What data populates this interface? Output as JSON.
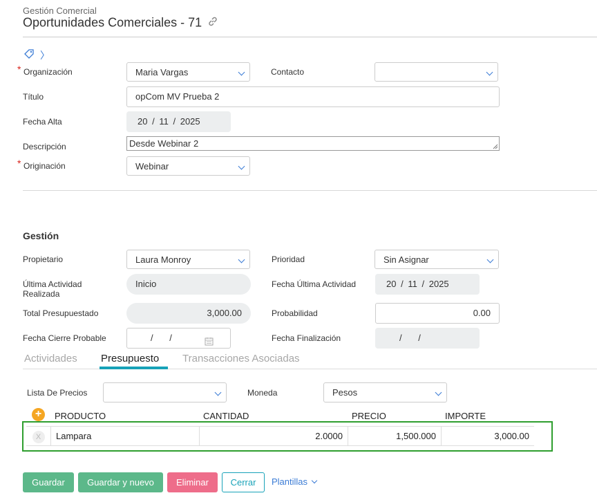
{
  "header": {
    "breadcrumb": "Gestión Comercial",
    "title": "Oportunidades Comerciales - 71"
  },
  "form": {
    "organizacion": {
      "label": "Organización",
      "value": "Maria Vargas"
    },
    "contacto": {
      "label": "Contacto",
      "value": ""
    },
    "titulo": {
      "label": "Título",
      "value": "opCom MV Prueba 2"
    },
    "fecha_alta": {
      "label": "Fecha Alta",
      "day": "20",
      "month": "11",
      "year": "2025",
      "sep": "/"
    },
    "descripcion": {
      "label": "Descripción",
      "value": "Desde Webinar 2"
    },
    "originacion": {
      "label": "Originación",
      "value": "Webinar"
    }
  },
  "gestion": {
    "heading": "Gestión",
    "propietario": {
      "label": "Propietario",
      "value": "Laura Monroy"
    },
    "prioridad": {
      "label": "Prioridad",
      "value": "Sin Asignar"
    },
    "ultima_actividad": {
      "label_line1": "Última Actividad",
      "label_line2": "Realizada",
      "value": "Inicio"
    },
    "fecha_ultima_actividad": {
      "label": "Fecha Última Actividad",
      "day": "20",
      "month": "11",
      "year": "2025"
    },
    "total_presupuestado": {
      "label": "Total Presupuestado",
      "value": "3,000.00"
    },
    "probabilidad": {
      "label": "Probabilidad",
      "value": "0.00"
    },
    "fecha_cierre": {
      "label": "Fecha Cierre Probable"
    },
    "fecha_finalizacion": {
      "label": "Fecha Finalización"
    }
  },
  "tabs": [
    {
      "label": "Actividades",
      "active": false
    },
    {
      "label": "Presupuesto",
      "active": true
    },
    {
      "label": "Transacciones Asociadas",
      "active": false
    }
  ],
  "presupuesto": {
    "lista_precios": {
      "label": "Lista De Precios",
      "value": ""
    },
    "moneda": {
      "label": "Moneda",
      "value": "Pesos"
    },
    "columns": [
      "PRODUCTO",
      "CANTIDAD",
      "PRECIO",
      "IMPORTE"
    ],
    "rows": [
      {
        "remove": "X",
        "producto": "Lampara",
        "cantidad": "2.0000",
        "precio": "1,500.000",
        "importe": "3,000.00"
      }
    ]
  },
  "actions": {
    "guardar": "Guardar",
    "guardar_nuevo": "Guardar y nuevo",
    "eliminar": "Eliminar",
    "cerrar": "Cerrar",
    "plantillas": "Plantillas"
  },
  "colors": {
    "accent": "#17a2b8",
    "success": "#5cb88a",
    "danger": "#ee6d8a",
    "required": "#d9241c",
    "link": "#3a7bd5",
    "highlight": "#2e9e2e"
  }
}
